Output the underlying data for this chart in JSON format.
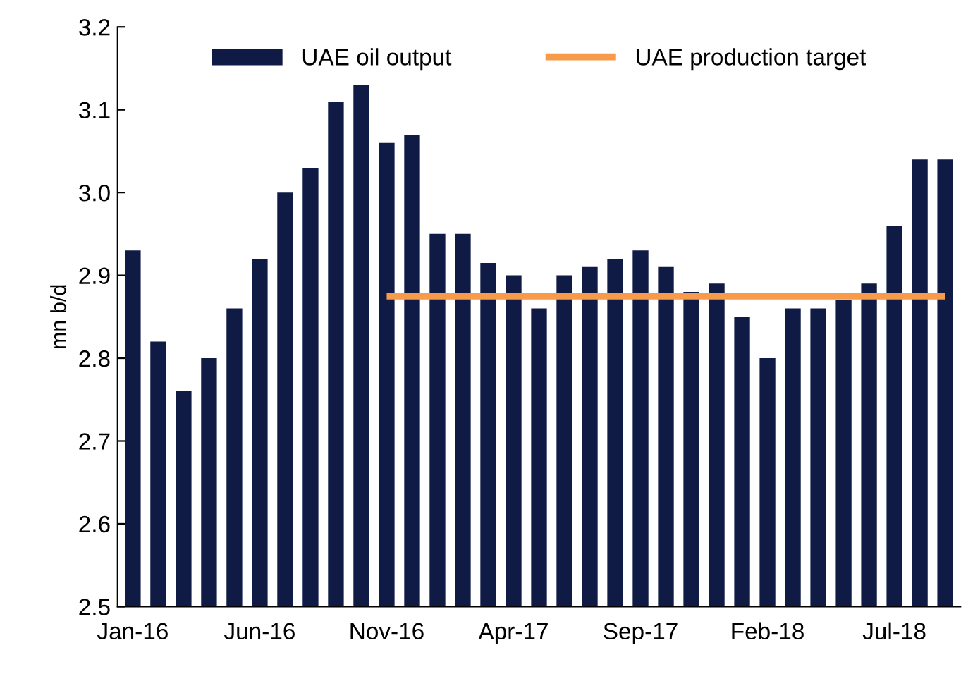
{
  "chart_data": {
    "type": "bar",
    "ylabel": "mn b/d",
    "categories": [
      "Jan-16",
      null,
      null,
      null,
      null,
      "Jun-16",
      null,
      null,
      null,
      null,
      "Nov-16",
      null,
      null,
      null,
      null,
      "Apr-17",
      null,
      null,
      null,
      null,
      "Sep-17",
      null,
      null,
      null,
      null,
      "Feb-18",
      null,
      null,
      null,
      null,
      "Jul-18",
      null,
      null
    ],
    "series": [
      {
        "name": "UAE oil output",
        "color": "#0f1a45",
        "values": [
          2.93,
          2.82,
          2.76,
          2.8,
          2.86,
          2.92,
          3.0,
          3.03,
          3.11,
          3.13,
          3.06,
          3.07,
          2.95,
          2.95,
          2.915,
          2.9,
          2.86,
          2.9,
          2.91,
          2.92,
          2.93,
          2.91,
          2.88,
          2.89,
          2.85,
          2.8,
          2.86,
          2.86,
          2.87,
          2.89,
          2.96,
          3.04,
          3.04
        ]
      },
      {
        "name": "UAE production target",
        "type": "line",
        "color": "#f79a4a",
        "values": [
          null,
          null,
          null,
          null,
          null,
          null,
          null,
          null,
          null,
          null,
          2.875,
          2.875,
          2.875,
          2.875,
          2.875,
          2.875,
          2.875,
          2.875,
          2.875,
          2.875,
          2.875,
          2.875,
          2.875,
          2.875,
          2.875,
          2.875,
          2.875,
          2.875,
          2.875,
          2.875,
          2.875,
          2.875,
          2.875
        ]
      }
    ],
    "ylim": [
      2.5,
      3.2
    ],
    "yticks": [
      2.5,
      2.6,
      2.7,
      2.8,
      2.9,
      {
        "value": 3,
        "label": "3.0"
      },
      3.1,
      3.2
    ],
    "grid": false,
    "legend": "top"
  }
}
